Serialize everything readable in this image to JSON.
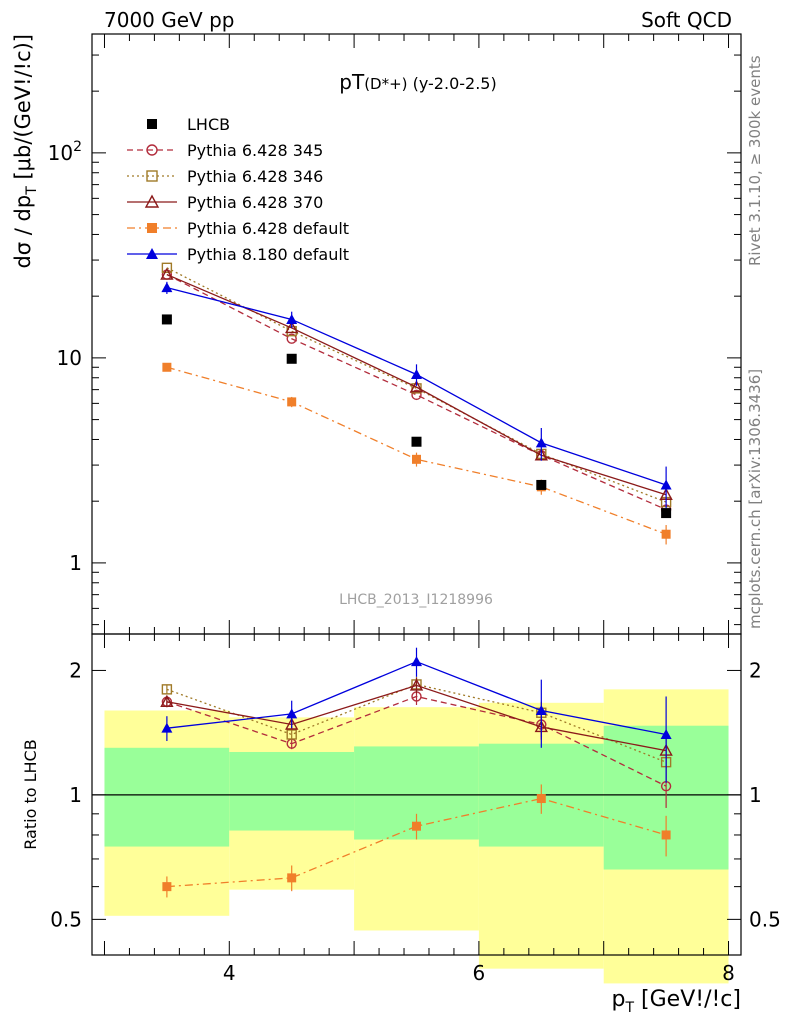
{
  "header": {
    "left": "7000 GeV pp",
    "right": "Soft QCD"
  },
  "side_labels": {
    "rivet": "Rivet 3.1.10, ≥ 300k events",
    "mcplots": "mcplots.cern.ch [arXiv:1306.3436]"
  },
  "chart_data": [
    {
      "type": "scatter",
      "title": "pT(D*+) (y-2.0-2.5)",
      "title_main": "pT",
      "title_particle": "(D*+)",
      "title_range": "(y-2.0-2.5)",
      "ylabel": "dσ / dp_T [μb/(GeV!/!c)]",
      "yscale": "log",
      "ylim": [
        0.45,
        380
      ],
      "xlim": [
        2.9,
        8.1
      ],
      "y_ticks": [
        "1",
        "10",
        "10^2"
      ],
      "watermark": "LHCB_2013_I1218996",
      "legend_position": "top-left",
      "x": [
        3.5,
        4.5,
        5.5,
        6.5,
        7.5
      ],
      "series": [
        {
          "name": "LHCB",
          "color": "#000000",
          "marker": "filled-square",
          "line": "none",
          "values": [
            15.4,
            9.9,
            3.9,
            2.4,
            1.75
          ]
        },
        {
          "name": "Pythia 6.428 345",
          "color": "#b22c3c",
          "marker": "open-circle",
          "line": "dashed",
          "values": [
            25.5,
            12.4,
            6.6,
            3.35,
            1.82
          ]
        },
        {
          "name": "Pythia 6.428 346",
          "color": "#a07a28",
          "marker": "open-square",
          "line": "dotted",
          "values": [
            27.5,
            13.5,
            7.1,
            3.4,
            1.98
          ]
        },
        {
          "name": "Pythia 6.428 370",
          "color": "#8b1a1a",
          "marker": "open-triangle",
          "line": "solid",
          "values": [
            25.5,
            14.0,
            7.2,
            3.35,
            2.15
          ]
        },
        {
          "name": "Pythia 6.428 default",
          "color": "#f07f2a",
          "marker": "filled-square",
          "line": "dashdot",
          "values": [
            9.0,
            6.1,
            3.2,
            2.35,
            1.38
          ],
          "err": [
            0.4,
            0.35,
            0.25,
            0.2,
            0.15
          ]
        },
        {
          "name": "Pythia 8.180 default",
          "color": "#0000dd",
          "marker": "filled-triangle",
          "line": "solid",
          "values": [
            22.0,
            15.4,
            8.3,
            3.85,
            2.4
          ],
          "err": [
            1.5,
            1.4,
            1.0,
            0.7,
            0.55
          ]
        }
      ]
    },
    {
      "type": "scatter",
      "ylabel": "Ratio to LHCB",
      "xlabel": "p_T [GeV!/!c]",
      "yscale": "log",
      "ylim": [
        0.41,
        2.45
      ],
      "xlim": [
        2.9,
        8.1
      ],
      "x_ticks": [
        4,
        6,
        8
      ],
      "y_ticks": [
        0.5,
        1,
        2
      ],
      "bins": [
        [
          3,
          4
        ],
        [
          4,
          5
        ],
        [
          5,
          6
        ],
        [
          6,
          7
        ],
        [
          7,
          8
        ]
      ],
      "band_green": [
        [
          0.75,
          1.3
        ],
        [
          0.82,
          1.27
        ],
        [
          0.78,
          1.31
        ],
        [
          0.75,
          1.33
        ],
        [
          0.66,
          1.47
        ]
      ],
      "band_yellow": [
        [
          0.51,
          1.6
        ],
        [
          0.59,
          1.54
        ],
        [
          0.47,
          1.63
        ],
        [
          0.38,
          1.67
        ],
        [
          0.35,
          1.8
        ]
      ],
      "x": [
        3.5,
        4.5,
        5.5,
        6.5,
        7.5
      ],
      "series": [
        {
          "name": "Pythia 6.428 345",
          "values": [
            1.68,
            1.33,
            1.73,
            1.48,
            1.05
          ],
          "err": [
            0.05,
            0.04,
            0.08,
            0.1,
            0.12
          ]
        },
        {
          "name": "Pythia 6.428 346",
          "values": [
            1.8,
            1.4,
            1.85,
            1.58,
            1.2
          ],
          "err": [
            0.05,
            0.04,
            0.08,
            0.1,
            0.12
          ]
        },
        {
          "name": "Pythia 6.428 370",
          "values": [
            1.68,
            1.48,
            1.84,
            1.46,
            1.28
          ],
          "err": [
            0.05,
            0.04,
            0.08,
            0.1,
            0.12
          ]
        },
        {
          "name": "Pythia 6.428 default",
          "values": [
            0.6,
            0.63,
            0.84,
            0.98,
            0.8
          ],
          "err": [
            0.035,
            0.045,
            0.06,
            0.08,
            0.09
          ]
        },
        {
          "name": "Pythia 8.180 default",
          "values": [
            1.45,
            1.57,
            2.1,
            1.6,
            1.4
          ],
          "err": [
            0.1,
            0.12,
            0.17,
            0.3,
            0.33
          ]
        }
      ]
    }
  ]
}
